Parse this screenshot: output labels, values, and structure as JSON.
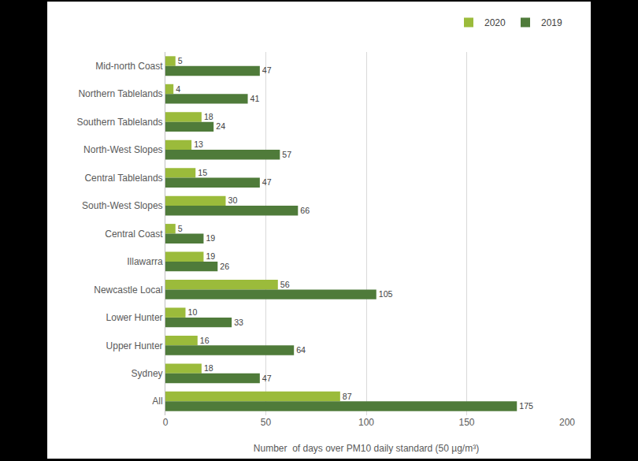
{
  "chart_data": {
    "type": "bar",
    "orientation": "horizontal",
    "x_label": "Number  of days over PM10 daily standard (50 µg/m³)",
    "categories": [
      "Mid-north Coast",
      "Northern Tablelands",
      "Southern Tablelands",
      "North-West Slopes",
      "Central Tablelands",
      "South-West Slopes",
      "Central Coast",
      "Illawarra",
      "Newcastle Local",
      "Lower Hunter",
      "Upper Hunter",
      "Sydney",
      "All"
    ],
    "series": [
      {
        "name": "2020",
        "color": "#9bbb3b",
        "values": [
          5,
          4,
          18,
          13,
          15,
          30,
          5,
          19,
          56,
          10,
          16,
          18,
          87
        ]
      },
      {
        "name": "2019",
        "color": "#4f7b3a",
        "values": [
          47,
          41,
          24,
          57,
          47,
          66,
          19,
          26,
          105,
          33,
          64,
          47,
          175
        ]
      }
    ],
    "xlim": [
      0,
      200
    ],
    "xticks": [
      0,
      50,
      100,
      150,
      200
    ],
    "grid": true,
    "legend": "top right",
    "data_labels": true
  }
}
